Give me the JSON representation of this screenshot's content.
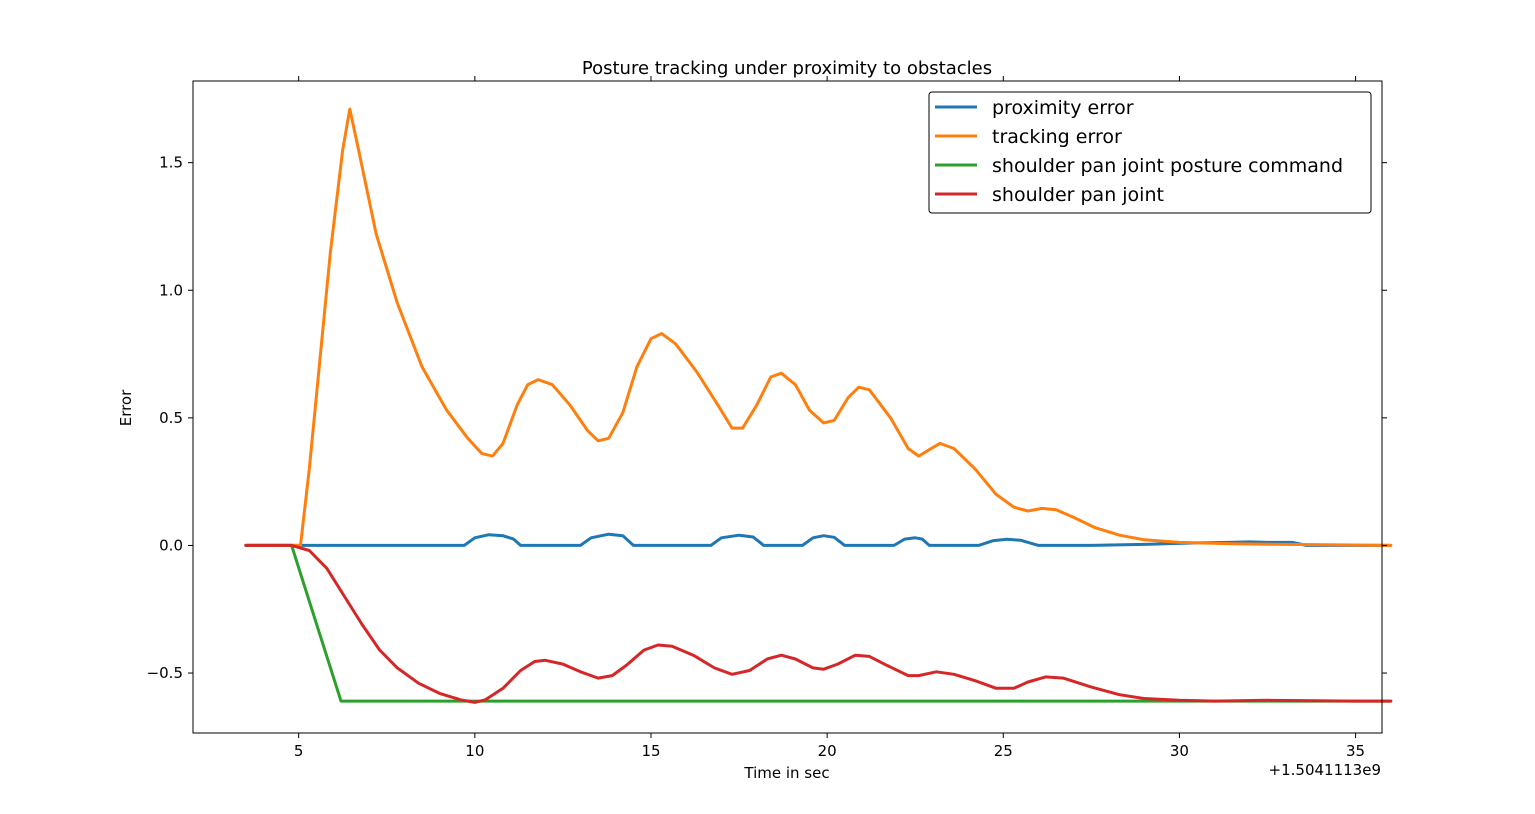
{
  "chart_data": {
    "type": "line",
    "title": "Posture tracking under proximity to obstacles",
    "xlabel": "Time in sec",
    "ylabel": "Error",
    "x_offset_label": "+1.5041113e9",
    "xlim": [
      2.0,
      35.75
    ],
    "ylim": [
      -0.735,
      1.82
    ],
    "x_ticks": [
      5,
      10,
      15,
      20,
      25,
      30,
      35
    ],
    "y_ticks": [
      -0.5,
      0.0,
      0.5,
      1.0,
      1.5
    ],
    "x_tick_labels": [
      "5",
      "10",
      "15",
      "20",
      "25",
      "30",
      "35"
    ],
    "y_tick_labels": [
      "−0.5",
      "0.0",
      "0.5",
      "1.0",
      "1.5"
    ],
    "grid": false,
    "legend_position": "top-right",
    "series": [
      {
        "name": "proximity error",
        "color": "#1f77b4",
        "points": [
          [
            3.5,
            0
          ],
          [
            9.7,
            0
          ],
          [
            10.0,
            0.03
          ],
          [
            10.4,
            0.042
          ],
          [
            10.8,
            0.038
          ],
          [
            11.1,
            0.025
          ],
          [
            11.3,
            0
          ],
          [
            13.0,
            0
          ],
          [
            13.3,
            0.03
          ],
          [
            13.8,
            0.044
          ],
          [
            14.2,
            0.038
          ],
          [
            14.5,
            0
          ],
          [
            16.7,
            0
          ],
          [
            17.0,
            0.03
          ],
          [
            17.5,
            0.04
          ],
          [
            17.9,
            0.033
          ],
          [
            18.2,
            0
          ],
          [
            19.3,
            0
          ],
          [
            19.6,
            0.03
          ],
          [
            19.9,
            0.038
          ],
          [
            20.2,
            0.032
          ],
          [
            20.5,
            0
          ],
          [
            21.9,
            0
          ],
          [
            22.2,
            0.025
          ],
          [
            22.5,
            0.03
          ],
          [
            22.7,
            0.025
          ],
          [
            22.9,
            0
          ],
          [
            24.3,
            0
          ],
          [
            24.7,
            0.018
          ],
          [
            25.1,
            0.024
          ],
          [
            25.5,
            0.02
          ],
          [
            26.0,
            0
          ],
          [
            27.5,
            0
          ],
          [
            29.0,
            0.004
          ],
          [
            30.5,
            0.01
          ],
          [
            31.4,
            0.012
          ],
          [
            32.0,
            0.014
          ],
          [
            32.5,
            0.012
          ],
          [
            33.2,
            0.012
          ],
          [
            33.6,
            0
          ],
          [
            36.0,
            0
          ]
        ]
      },
      {
        "name": "tracking error",
        "color": "#ff7f0e",
        "points": [
          [
            3.5,
            0
          ],
          [
            5.05,
            0
          ],
          [
            5.3,
            0.3
          ],
          [
            5.9,
            1.15
          ],
          [
            6.25,
            1.55
          ],
          [
            6.45,
            1.71
          ],
          [
            6.7,
            1.55
          ],
          [
            7.2,
            1.22
          ],
          [
            7.8,
            0.95
          ],
          [
            8.5,
            0.7
          ],
          [
            9.2,
            0.53
          ],
          [
            9.8,
            0.42
          ],
          [
            10.2,
            0.36
          ],
          [
            10.5,
            0.35
          ],
          [
            10.8,
            0.4
          ],
          [
            11.2,
            0.55
          ],
          [
            11.5,
            0.63
          ],
          [
            11.8,
            0.65
          ],
          [
            12.2,
            0.63
          ],
          [
            12.7,
            0.55
          ],
          [
            13.2,
            0.45
          ],
          [
            13.5,
            0.41
          ],
          [
            13.8,
            0.42
          ],
          [
            14.2,
            0.52
          ],
          [
            14.6,
            0.7
          ],
          [
            15.0,
            0.81
          ],
          [
            15.3,
            0.83
          ],
          [
            15.7,
            0.79
          ],
          [
            16.3,
            0.68
          ],
          [
            16.9,
            0.55
          ],
          [
            17.3,
            0.46
          ],
          [
            17.6,
            0.46
          ],
          [
            18.0,
            0.55
          ],
          [
            18.4,
            0.66
          ],
          [
            18.7,
            0.675
          ],
          [
            19.1,
            0.63
          ],
          [
            19.5,
            0.53
          ],
          [
            19.9,
            0.48
          ],
          [
            20.2,
            0.49
          ],
          [
            20.6,
            0.58
          ],
          [
            20.9,
            0.62
          ],
          [
            21.2,
            0.61
          ],
          [
            21.8,
            0.5
          ],
          [
            22.3,
            0.38
          ],
          [
            22.6,
            0.35
          ],
          [
            22.9,
            0.375
          ],
          [
            23.2,
            0.4
          ],
          [
            23.6,
            0.38
          ],
          [
            24.2,
            0.3
          ],
          [
            24.8,
            0.2
          ],
          [
            25.3,
            0.15
          ],
          [
            25.7,
            0.135
          ],
          [
            26.1,
            0.145
          ],
          [
            26.5,
            0.14
          ],
          [
            27.0,
            0.11
          ],
          [
            27.6,
            0.07
          ],
          [
            28.3,
            0.04
          ],
          [
            29.0,
            0.022
          ],
          [
            30.0,
            0.012
          ],
          [
            31.5,
            0.007
          ],
          [
            33.0,
            0.004
          ],
          [
            36.0,
            0
          ]
        ]
      },
      {
        "name": "shoulder pan joint posture command",
        "color": "#2ca02c",
        "points": [
          [
            3.5,
            0
          ],
          [
            4.8,
            0
          ],
          [
            6.2,
            -0.61
          ],
          [
            36.0,
            -0.61
          ]
        ]
      },
      {
        "name": "shoulder pan joint",
        "color": "#d62728",
        "points": [
          [
            3.5,
            0
          ],
          [
            4.8,
            0
          ],
          [
            5.3,
            -0.02
          ],
          [
            5.8,
            -0.09
          ],
          [
            6.3,
            -0.2
          ],
          [
            6.8,
            -0.31
          ],
          [
            7.3,
            -0.41
          ],
          [
            7.8,
            -0.48
          ],
          [
            8.4,
            -0.54
          ],
          [
            9.0,
            -0.58
          ],
          [
            9.6,
            -0.605
          ],
          [
            10.0,
            -0.615
          ],
          [
            10.3,
            -0.605
          ],
          [
            10.8,
            -0.56
          ],
          [
            11.3,
            -0.49
          ],
          [
            11.7,
            -0.455
          ],
          [
            12.0,
            -0.45
          ],
          [
            12.5,
            -0.465
          ],
          [
            13.0,
            -0.495
          ],
          [
            13.5,
            -0.52
          ],
          [
            13.9,
            -0.51
          ],
          [
            14.3,
            -0.47
          ],
          [
            14.8,
            -0.41
          ],
          [
            15.2,
            -0.39
          ],
          [
            15.6,
            -0.395
          ],
          [
            16.2,
            -0.43
          ],
          [
            16.8,
            -0.48
          ],
          [
            17.3,
            -0.505
          ],
          [
            17.8,
            -0.49
          ],
          [
            18.3,
            -0.445
          ],
          [
            18.7,
            -0.43
          ],
          [
            19.1,
            -0.445
          ],
          [
            19.6,
            -0.48
          ],
          [
            19.9,
            -0.485
          ],
          [
            20.3,
            -0.465
          ],
          [
            20.8,
            -0.43
          ],
          [
            21.2,
            -0.435
          ],
          [
            21.7,
            -0.47
          ],
          [
            22.3,
            -0.51
          ],
          [
            22.6,
            -0.51
          ],
          [
            23.1,
            -0.495
          ],
          [
            23.6,
            -0.505
          ],
          [
            24.2,
            -0.53
          ],
          [
            24.8,
            -0.56
          ],
          [
            25.3,
            -0.56
          ],
          [
            25.7,
            -0.535
          ],
          [
            26.2,
            -0.515
          ],
          [
            26.7,
            -0.52
          ],
          [
            27.5,
            -0.555
          ],
          [
            28.3,
            -0.585
          ],
          [
            29.0,
            -0.6
          ],
          [
            30.0,
            -0.607
          ],
          [
            31.0,
            -0.61
          ],
          [
            32.5,
            -0.607
          ],
          [
            33.5,
            -0.608
          ],
          [
            35.0,
            -0.61
          ],
          [
            36.0,
            -0.61
          ]
        ]
      }
    ]
  }
}
